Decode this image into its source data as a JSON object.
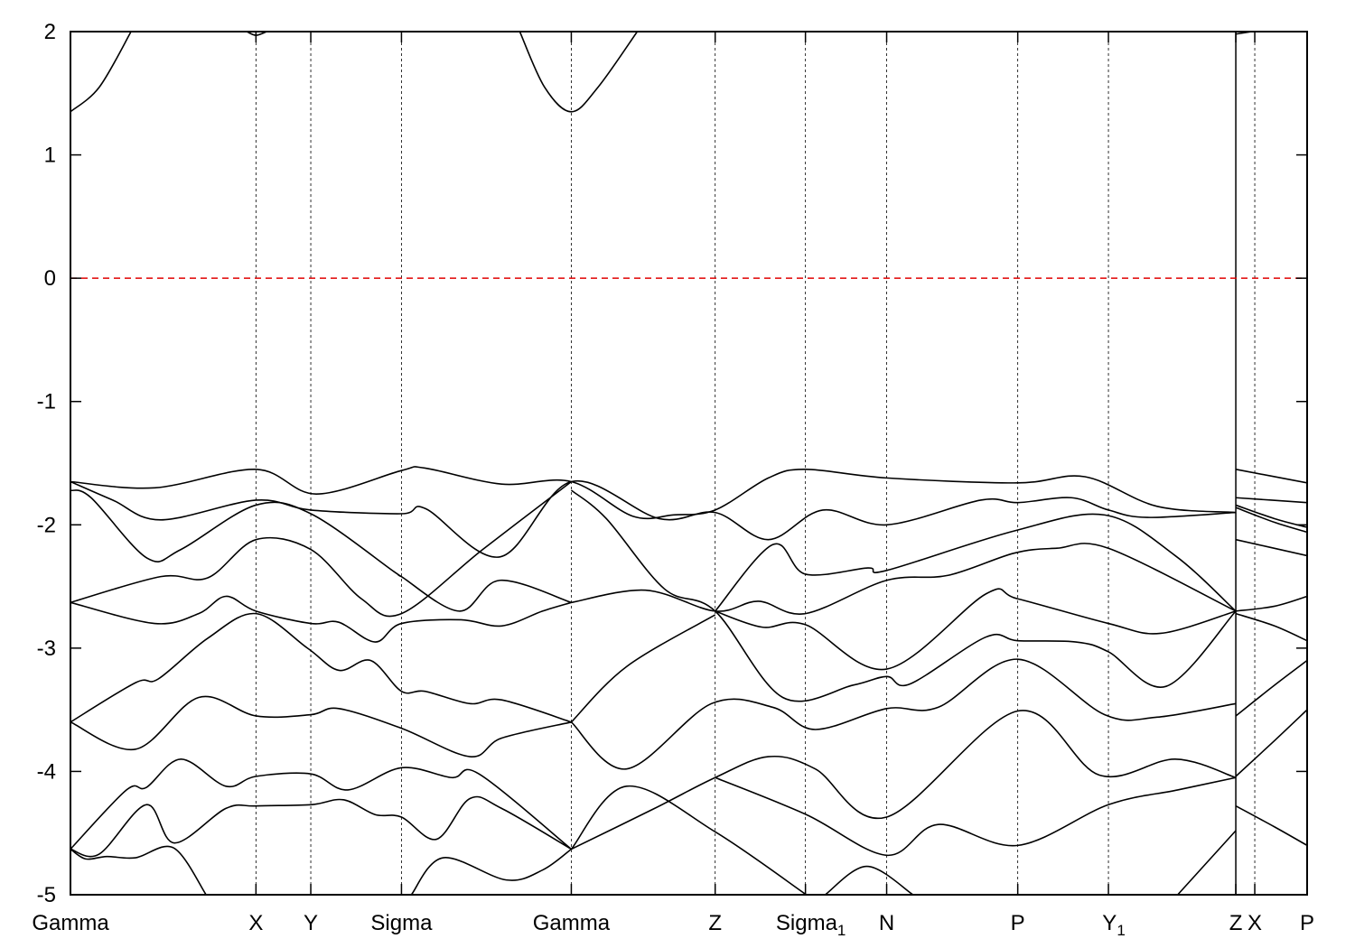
{
  "chart_data": {
    "type": "line",
    "title": "",
    "xlabel": "",
    "ylabel": "",
    "ylim": [
      -5,
      2
    ],
    "xlim": [
      0,
      3.0
    ],
    "yticks": [
      2,
      1,
      0,
      -1,
      -2,
      -3,
      -4,
      -5
    ],
    "grid": "vertical dotted lines at high-symmetry points",
    "fermi_level": {
      "value": 0,
      "color": "#e00000",
      "style": "dashed"
    },
    "line_color": "#000000",
    "path_break_at": 2.827,
    "kpoints": [
      {
        "label": "Gamma",
        "sub": "",
        "k": 0
      },
      {
        "label": "X",
        "sub": "",
        "k": 0.45
      },
      {
        "label": "Y",
        "sub": "",
        "k": 0.583
      },
      {
        "label": "Sigma",
        "sub": "",
        "k": 0.803
      },
      {
        "label": "Gamma",
        "sub": "",
        "k": 1.215
      },
      {
        "label": "Z",
        "sub": "",
        "k": 1.564
      },
      {
        "label": "Sigma",
        "sub": "1",
        "k": 1.783
      },
      {
        "label": "N",
        "sub": "",
        "k": 1.98
      },
      {
        "label": "P",
        "sub": "",
        "k": 2.298
      },
      {
        "label": "Y",
        "sub": "1",
        "k": 2.518
      },
      {
        "label": "Z",
        "sub": "",
        "k": 2.827
      },
      {
        "label": "X",
        "sub": "",
        "k": 2.873
      },
      {
        "label": "P",
        "sub": "",
        "k": 3.0
      }
    ],
    "bands": [
      [
        [
          0,
          1.35
        ],
        [
          0.07,
          1.55
        ],
        [
          0.147,
          2.0
        ]
      ],
      [
        [
          0.428,
          2.0
        ],
        [
          0.45,
          1.97
        ],
        [
          0.476,
          2.0
        ]
      ],
      [
        [
          1.09,
          2.0
        ],
        [
          1.15,
          1.55
        ],
        [
          1.215,
          1.35
        ],
        [
          1.28,
          1.55
        ],
        [
          1.375,
          2.0
        ]
      ],
      [
        [
          2.827,
          1.98
        ],
        [
          2.866,
          2.0
        ]
      ],
      [
        [
          0,
          -1.65
        ],
        [
          0.204,
          -1.7
        ],
        [
          0.45,
          -1.55
        ],
        [
          0.596,
          -1.75
        ],
        [
          0.803,
          -1.56
        ],
        [
          0.86,
          -1.54
        ],
        [
          1.046,
          -1.67
        ],
        [
          1.215,
          -1.65
        ],
        [
          1.364,
          -1.93
        ],
        [
          1.463,
          -1.92
        ],
        [
          1.564,
          -1.88
        ],
        [
          1.693,
          -1.62
        ],
        [
          1.783,
          -1.55
        ],
        [
          1.98,
          -1.62
        ],
        [
          2.298,
          -1.66
        ],
        [
          2.461,
          -1.61
        ],
        [
          2.636,
          -1.85
        ],
        [
          2.827,
          -1.9
        ]
      ],
      [
        [
          0,
          -1.65
        ],
        [
          0.103,
          -1.8
        ],
        [
          0.219,
          -1.96
        ],
        [
          0.45,
          -1.8
        ],
        [
          0.583,
          -1.88
        ],
        [
          0.803,
          -1.91
        ],
        [
          0.862,
          -1.87
        ],
        [
          1.042,
          -2.26
        ],
        [
          1.215,
          -1.65
        ],
        [
          1.428,
          -1.95
        ],
        [
          1.564,
          -1.9
        ],
        [
          1.693,
          -2.12
        ],
        [
          1.825,
          -1.88
        ],
        [
          1.98,
          -2.0
        ],
        [
          2.208,
          -1.8
        ],
        [
          2.298,
          -1.82
        ],
        [
          2.428,
          -1.78
        ],
        [
          2.518,
          -1.88
        ],
        [
          2.612,
          -1.94
        ],
        [
          2.827,
          -1.9
        ]
      ],
      [
        [
          0,
          -1.72
        ],
        [
          0.05,
          -1.78
        ],
        [
          0.186,
          -2.27
        ],
        [
          0.268,
          -2.2
        ],
        [
          0.45,
          -1.84
        ],
        [
          0.583,
          -1.91
        ],
        [
          0.785,
          -2.38
        ],
        [
          0.803,
          -2.42
        ],
        [
          0.943,
          -2.7
        ],
        [
          1.042,
          -2.45
        ],
        [
          1.215,
          -2.63
        ]
      ],
      [
        [
          0,
          -2.63
        ],
        [
          0.219,
          -2.42
        ],
        [
          0.333,
          -2.43
        ],
        [
          0.45,
          -2.12
        ],
        [
          0.583,
          -2.2
        ],
        [
          0.706,
          -2.6
        ],
        [
          0.803,
          -2.72
        ],
        [
          1.0,
          -2.2
        ],
        [
          1.215,
          -1.65
        ]
      ],
      [
        [
          0,
          -2.63
        ],
        [
          0.204,
          -2.8
        ],
        [
          0.311,
          -2.72
        ],
        [
          0.377,
          -2.58
        ],
        [
          0.45,
          -2.7
        ],
        [
          0.583,
          -2.8
        ],
        [
          0.651,
          -2.79
        ],
        [
          0.739,
          -2.95
        ],
        [
          0.803,
          -2.8
        ],
        [
          0.947,
          -2.77
        ],
        [
          1.046,
          -2.82
        ],
        [
          1.145,
          -2.7
        ],
        [
          1.215,
          -2.63
        ]
      ],
      [
        [
          0,
          -3.6
        ],
        [
          0.158,
          -3.28
        ],
        [
          0.213,
          -3.25
        ],
        [
          0.333,
          -2.92
        ],
        [
          0.45,
          -2.72
        ],
        [
          0.575,
          -3.0
        ],
        [
          0.651,
          -3.18
        ],
        [
          0.728,
          -3.1
        ],
        [
          0.803,
          -3.35
        ],
        [
          0.86,
          -3.35
        ],
        [
          0.969,
          -3.45
        ],
        [
          1.046,
          -3.42
        ],
        [
          1.215,
          -3.6
        ]
      ],
      [
        [
          0,
          -3.6
        ],
        [
          0.158,
          -3.82
        ],
        [
          0.311,
          -3.4
        ],
        [
          0.45,
          -3.55
        ],
        [
          0.583,
          -3.54
        ],
        [
          0.651,
          -3.49
        ],
        [
          0.803,
          -3.65
        ],
        [
          0.969,
          -3.88
        ],
        [
          1.046,
          -3.73
        ],
        [
          1.215,
          -3.6
        ]
      ],
      [
        [
          0,
          -4.63
        ],
        [
          0.136,
          -4.15
        ],
        [
          0.184,
          -4.13
        ],
        [
          0.268,
          -3.9
        ],
        [
          0.377,
          -4.12
        ],
        [
          0.45,
          -4.04
        ],
        [
          0.583,
          -4.02
        ],
        [
          0.673,
          -4.15
        ],
        [
          0.803,
          -3.97
        ],
        [
          0.925,
          -4.05
        ],
        [
          0.991,
          -4.02
        ],
        [
          1.215,
          -4.63
        ]
      ],
      [
        [
          0,
          -4.63
        ],
        [
          0.07,
          -4.67
        ],
        [
          0.184,
          -4.27
        ],
        [
          0.252,
          -4.58
        ],
        [
          0.377,
          -4.3
        ],
        [
          0.45,
          -4.28
        ],
        [
          0.583,
          -4.27
        ],
        [
          0.662,
          -4.23
        ],
        [
          0.739,
          -4.35
        ],
        [
          0.803,
          -4.37
        ],
        [
          0.888,
          -4.55
        ],
        [
          0.969,
          -4.22
        ],
        [
          1.046,
          -4.3
        ],
        [
          1.215,
          -4.63
        ]
      ],
      [
        [
          0,
          -4.63
        ],
        [
          0.037,
          -4.71
        ],
        [
          0.088,
          -4.69
        ],
        [
          0.158,
          -4.7
        ],
        [
          0.25,
          -4.62
        ],
        [
          0.329,
          -5.0
        ]
      ],
      [
        [
          0.827,
          -5.0
        ],
        [
          0.904,
          -4.7
        ],
        [
          1.057,
          -4.88
        ],
        [
          1.145,
          -4.8
        ],
        [
          1.215,
          -4.63
        ]
      ],
      [
        [
          1.215,
          -1.72
        ],
        [
          1.3,
          -1.95
        ],
        [
          1.441,
          -2.52
        ],
        [
          1.564,
          -2.7
        ],
        [
          1.728,
          -3.4
        ],
        [
          1.899,
          -3.3
        ],
        [
          1.98,
          -3.23
        ],
        [
          2.037,
          -3.29
        ],
        [
          2.221,
          -2.91
        ],
        [
          2.298,
          -2.94
        ],
        [
          2.439,
          -2.95
        ],
        [
          2.518,
          -3.03
        ],
        [
          2.658,
          -3.31
        ],
        [
          2.827,
          -2.7
        ]
      ],
      [
        [
          1.564,
          -2.7
        ],
        [
          1.704,
          -2.16
        ],
        [
          1.783,
          -2.4
        ],
        [
          1.934,
          -2.35
        ],
        [
          1.98,
          -2.37
        ],
        [
          2.289,
          -2.05
        ],
        [
          2.509,
          -1.92
        ],
        [
          2.68,
          -2.25
        ],
        [
          2.827,
          -2.7
        ]
      ],
      [
        [
          1.215,
          -2.63
        ],
        [
          1.395,
          -2.53
        ],
        [
          1.564,
          -2.7
        ],
        [
          1.669,
          -2.62
        ],
        [
          1.783,
          -2.72
        ],
        [
          1.98,
          -2.45
        ],
        [
          2.129,
          -2.41
        ],
        [
          2.289,
          -2.23
        ],
        [
          2.393,
          -2.19
        ],
        [
          2.518,
          -2.19
        ],
        [
          2.827,
          -2.7
        ]
      ],
      [
        [
          1.564,
          -2.7
        ],
        [
          1.678,
          -2.83
        ],
        [
          1.783,
          -2.81
        ],
        [
          1.98,
          -3.17
        ],
        [
          2.221,
          -2.56
        ],
        [
          2.298,
          -2.6
        ],
        [
          2.518,
          -2.8
        ],
        [
          2.645,
          -2.88
        ],
        [
          2.827,
          -2.7
        ]
      ],
      [
        [
          1.215,
          -3.6
        ],
        [
          1.349,
          -3.15
        ],
        [
          1.564,
          -2.73
        ]
      ],
      [
        [
          1.215,
          -3.6
        ],
        [
          1.349,
          -3.98
        ],
        [
          1.555,
          -3.45
        ],
        [
          1.704,
          -3.48
        ],
        [
          1.807,
          -3.66
        ],
        [
          1.98,
          -3.49
        ],
        [
          2.105,
          -3.48
        ],
        [
          2.298,
          -3.09
        ],
        [
          2.509,
          -3.54
        ],
        [
          2.636,
          -3.56
        ],
        [
          2.827,
          -3.45
        ]
      ],
      [
        [
          1.215,
          -4.63
        ],
        [
          1.349,
          -4.12
        ],
        [
          1.564,
          -4.49
        ],
        [
          1.785,
          -5.0
        ]
      ],
      [
        [
          1.215,
          -4.63
        ],
        [
          1.417,
          -4.3
        ],
        [
          1.564,
          -4.05
        ],
        [
          1.693,
          -3.88
        ],
        [
          1.807,
          -3.98
        ],
        [
          1.98,
          -4.37
        ],
        [
          2.298,
          -3.51
        ],
        [
          2.496,
          -4.03
        ],
        [
          2.68,
          -3.9
        ],
        [
          2.827,
          -4.05
        ]
      ],
      [
        [
          1.564,
          -4.05
        ],
        [
          1.785,
          -4.35
        ],
        [
          1.98,
          -4.68
        ],
        [
          2.105,
          -4.43
        ],
        [
          2.298,
          -4.6
        ],
        [
          2.518,
          -4.27
        ],
        [
          2.686,
          -4.15
        ],
        [
          2.827,
          -4.05
        ]
      ],
      [
        [
          1.831,
          -5.0
        ],
        [
          1.932,
          -4.77
        ],
        [
          2.044,
          -5.0
        ]
      ],
      [
        [
          2.686,
          -5.0
        ],
        [
          2.827,
          -4.48
        ]
      ],
      [
        [
          2.827,
          -1.55
        ],
        [
          3.0,
          -1.66
        ]
      ],
      [
        [
          2.827,
          -1.78
        ],
        [
          3.0,
          -1.82
        ]
      ],
      [
        [
          2.827,
          -1.84
        ],
        [
          2.921,
          -1.95
        ],
        [
          3.0,
          -2.02
        ]
      ],
      [
        [
          2.827,
          -1.86
        ],
        [
          2.921,
          -1.98
        ],
        [
          3.0,
          -2.06
        ]
      ],
      [
        [
          2.827,
          -2.12
        ],
        [
          3.0,
          -2.25
        ]
      ],
      [
        [
          2.827,
          -2.7
        ],
        [
          2.921,
          -2.66
        ],
        [
          3.0,
          -2.58
        ]
      ],
      [
        [
          2.827,
          -2.72
        ],
        [
          2.921,
          -2.82
        ],
        [
          3.0,
          -2.94
        ]
      ],
      [
        [
          2.827,
          -3.55
        ],
        [
          2.921,
          -3.3
        ],
        [
          3.0,
          -3.1
        ]
      ],
      [
        [
          2.827,
          -4.04
        ],
        [
          2.921,
          -3.75
        ],
        [
          3.0,
          -3.5
        ]
      ],
      [
        [
          2.827,
          -4.28
        ],
        [
          2.921,
          -4.45
        ],
        [
          3.0,
          -4.6
        ]
      ]
    ]
  }
}
